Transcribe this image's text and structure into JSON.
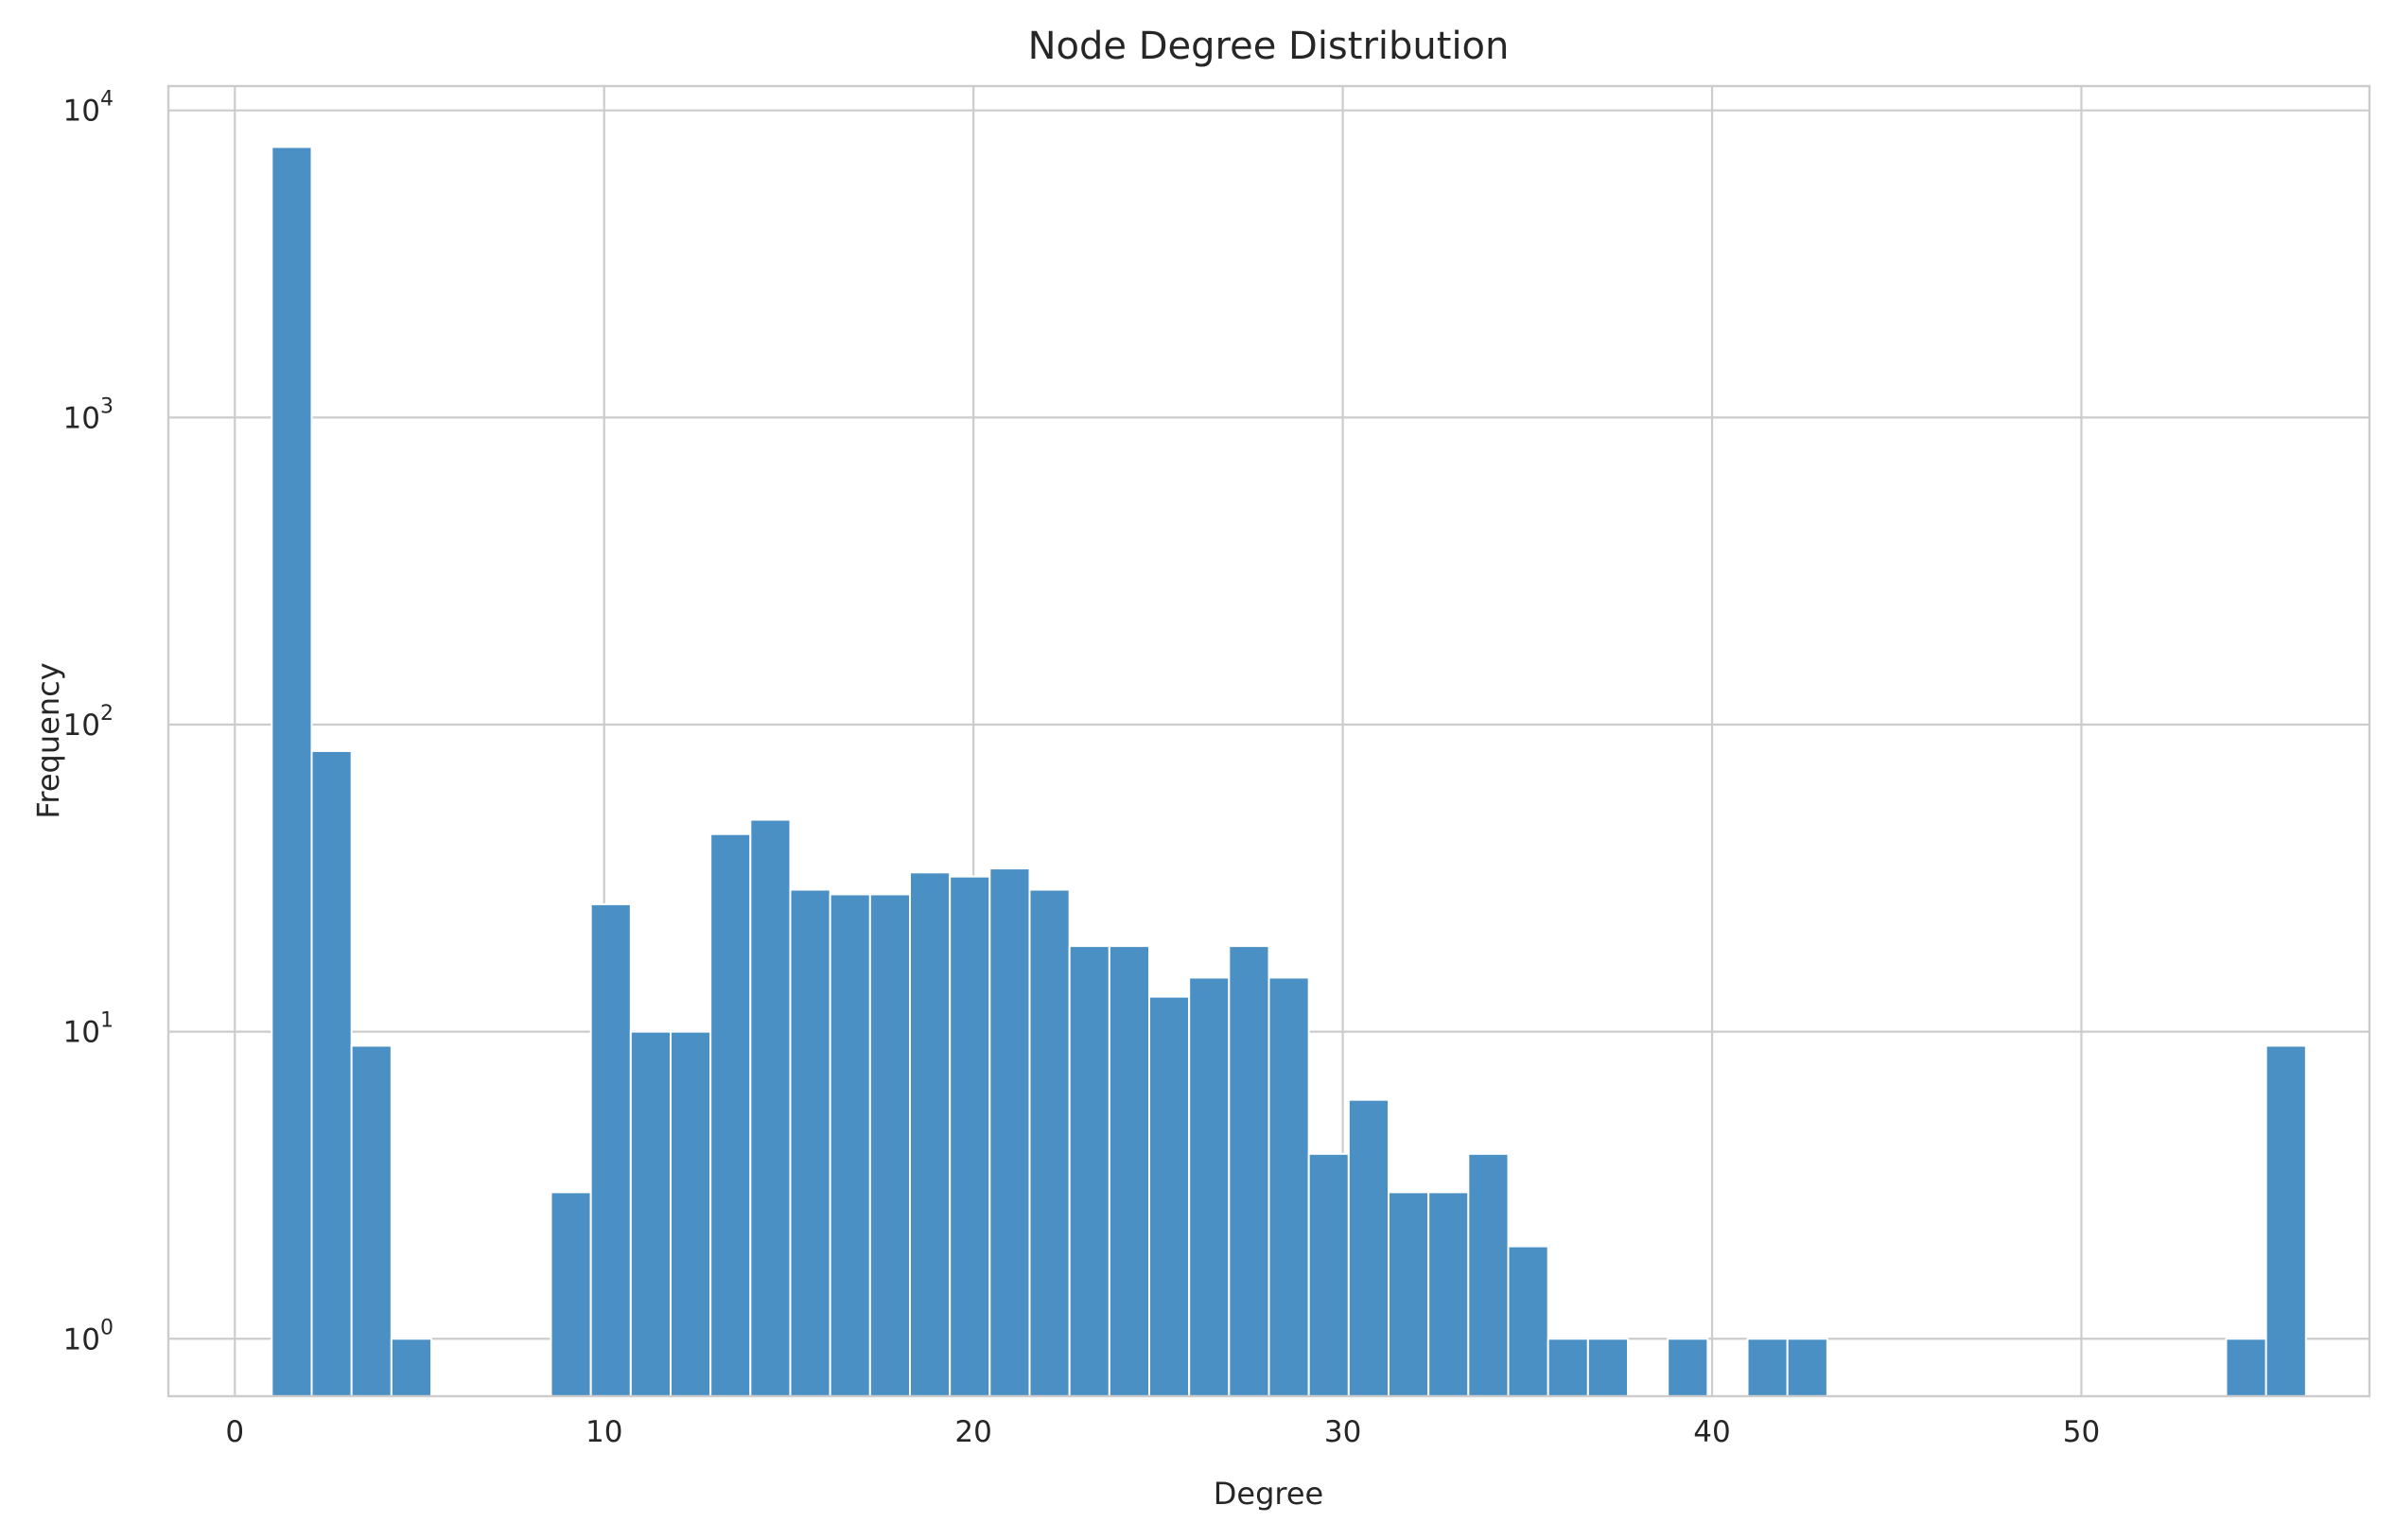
{
  "chart_data": {
    "type": "bar",
    "title": "Node Degree Distribution",
    "xlabel": "Degree",
    "ylabel": "Frequency",
    "yscale": "log",
    "grid": true,
    "color": "#4a90c4",
    "xlim": [
      -1.8,
      57.8
    ],
    "ylim": [
      0.65,
      12000
    ],
    "xticks": [
      0,
      10,
      20,
      30,
      40,
      50
    ],
    "yticks": [
      {
        "value": 1,
        "base": "10",
        "exp": "0"
      },
      {
        "value": 10,
        "base": "10",
        "exp": "1"
      },
      {
        "value": 100,
        "base": "10",
        "exp": "2"
      },
      {
        "value": 1000,
        "base": "10",
        "exp": "3"
      },
      {
        "value": 10000,
        "base": "10",
        "exp": "4"
      }
    ],
    "bin_start": 1.0,
    "bin_width": 1.08,
    "values": [
      7600,
      82,
      9,
      1,
      0,
      0,
      0,
      3,
      26,
      10,
      10,
      44,
      49,
      29,
      28,
      28,
      33,
      32,
      34,
      29,
      19,
      19,
      13,
      15,
      19,
      15,
      4,
      6,
      3,
      3,
      4,
      2,
      1,
      1,
      0,
      1,
      0,
      1,
      1,
      0,
      0,
      0,
      0,
      0,
      0,
      0,
      0,
      0,
      0,
      1,
      9
    ]
  }
}
